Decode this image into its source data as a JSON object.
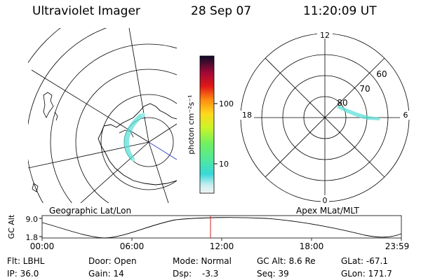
{
  "header": {
    "instrument": "Ultraviolet Imager",
    "date": "28 Sep 07",
    "time": "11:20:09 UT"
  },
  "geo_panel": {
    "label": "Geographic Lat/Lon"
  },
  "colorbar": {
    "label": "photon cm⁻²s⁻¹",
    "ticks": [
      "100",
      "10"
    ],
    "scale": "log"
  },
  "polar_panel": {
    "label": "Apex MLat/MLT",
    "mlt_labels": {
      "top": "12",
      "right": "6",
      "bottom": "0",
      "left": "18"
    },
    "lat_labels": [
      "60",
      "70",
      "80"
    ]
  },
  "orbit_plot": {
    "ylabel": "GC Alt",
    "yticks": [
      "9.0",
      "1.8"
    ],
    "xticks": [
      "00:00",
      "06:00",
      "12:00",
      "18:00",
      "23:59"
    ],
    "current_time": "11:20:09"
  },
  "status": {
    "row1": {
      "filter": "Flt: LBHL",
      "door": "Door: Open",
      "mode": "Mode: Normal",
      "gc_alt": "GC Alt: 8.6 Re",
      "glat": "GLat: -67.1"
    },
    "row2": {
      "ip": "IP: 36.0",
      "gain": "Gain: 14",
      "dsp": "Dsp:",
      "dsp_value": "-3.3",
      "seq": "Seq: 39",
      "glon": "GLon: 171.7"
    }
  },
  "colors": {
    "marker": "#cc2222",
    "aurora": "#5fe0d8",
    "azimuth_line": "#3344cc"
  }
}
